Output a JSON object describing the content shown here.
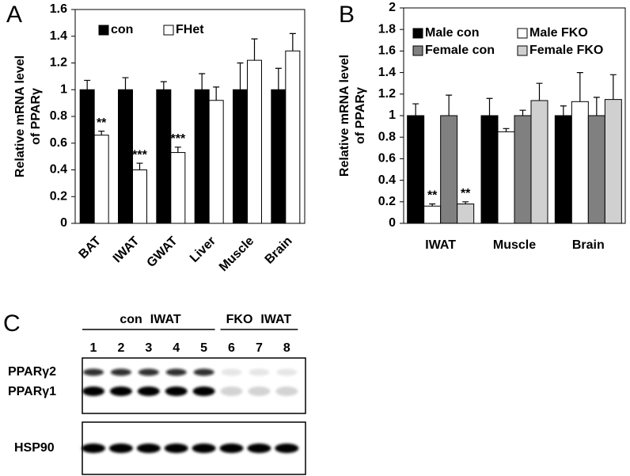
{
  "chart_data": [
    {
      "type": "bar",
      "panel": "A",
      "ylabel": [
        "Relative mRNA level",
        "of PPARγ"
      ],
      "categories": [
        "BAT",
        "IWAT",
        "GWAT",
        "Liver",
        "Muscle",
        "Brain"
      ],
      "series": [
        {
          "name": "con",
          "color": "#000000",
          "values": [
            1,
            1,
            1,
            1,
            1,
            1
          ],
          "errors": [
            0.07,
            0.09,
            0.06,
            0.12,
            0.2,
            0.16
          ],
          "significance": [
            null,
            null,
            null,
            null,
            null,
            null
          ]
        },
        {
          "name": "FHet",
          "color": "#ffffff",
          "values": [
            0.66,
            0.4,
            0.53,
            0.92,
            1.22,
            1.29
          ],
          "errors": [
            0.03,
            0.05,
            0.04,
            0.1,
            0.16,
            0.13
          ],
          "significance": [
            "**",
            "***",
            "***",
            null,
            null,
            null
          ]
        }
      ],
      "ylim": [
        0,
        1.6
      ],
      "yticks": [
        0,
        0.2,
        0.4,
        0.6,
        0.8,
        1,
        1.2,
        1.4,
        1.6
      ]
    },
    {
      "type": "bar",
      "panel": "B",
      "ylabel": [
        "Relative mRNA level",
        "of PPARγ"
      ],
      "categories": [
        "IWAT",
        "Muscle",
        "Brain"
      ],
      "series": [
        {
          "name": "Male con",
          "color": "#000000",
          "values": [
            1,
            1,
            1
          ],
          "errors": [
            0.11,
            0.16,
            0.09
          ],
          "significance": [
            null,
            null,
            null
          ]
        },
        {
          "name": "Male FKO",
          "color": "#ffffff",
          "values": [
            0.16,
            0.85,
            1.13
          ],
          "errors": [
            0.02,
            0.03,
            0.27
          ],
          "significance": [
            "**",
            null,
            null
          ]
        },
        {
          "name": "Female con",
          "color": "#808080",
          "values": [
            1,
            1,
            1
          ],
          "errors": [
            0.19,
            0.05,
            0.17
          ],
          "significance": [
            null,
            null,
            null
          ]
        },
        {
          "name": "Female FKO",
          "color": "#d0d0d0",
          "values": [
            0.18,
            1.14,
            1.15
          ],
          "errors": [
            0.02,
            0.16,
            0.23
          ],
          "significance": [
            "**",
            null,
            null
          ]
        }
      ],
      "ylim": [
        0,
        2
      ],
      "yticks": [
        0,
        0.2,
        0.4,
        0.6,
        0.8,
        1,
        1.2,
        1.4,
        1.6,
        1.8,
        2
      ]
    }
  ],
  "blot": {
    "panel": "C",
    "groups": [
      {
        "label": [
          "con",
          "IWAT"
        ],
        "lanes": [
          "1",
          "2",
          "3",
          "4",
          "5"
        ]
      },
      {
        "label": [
          "FKO",
          "IWAT"
        ],
        "lanes": [
          "6",
          "7",
          "8"
        ]
      }
    ],
    "bands": [
      "PPARγ2",
      "PPARγ1",
      "HSP90"
    ]
  }
}
